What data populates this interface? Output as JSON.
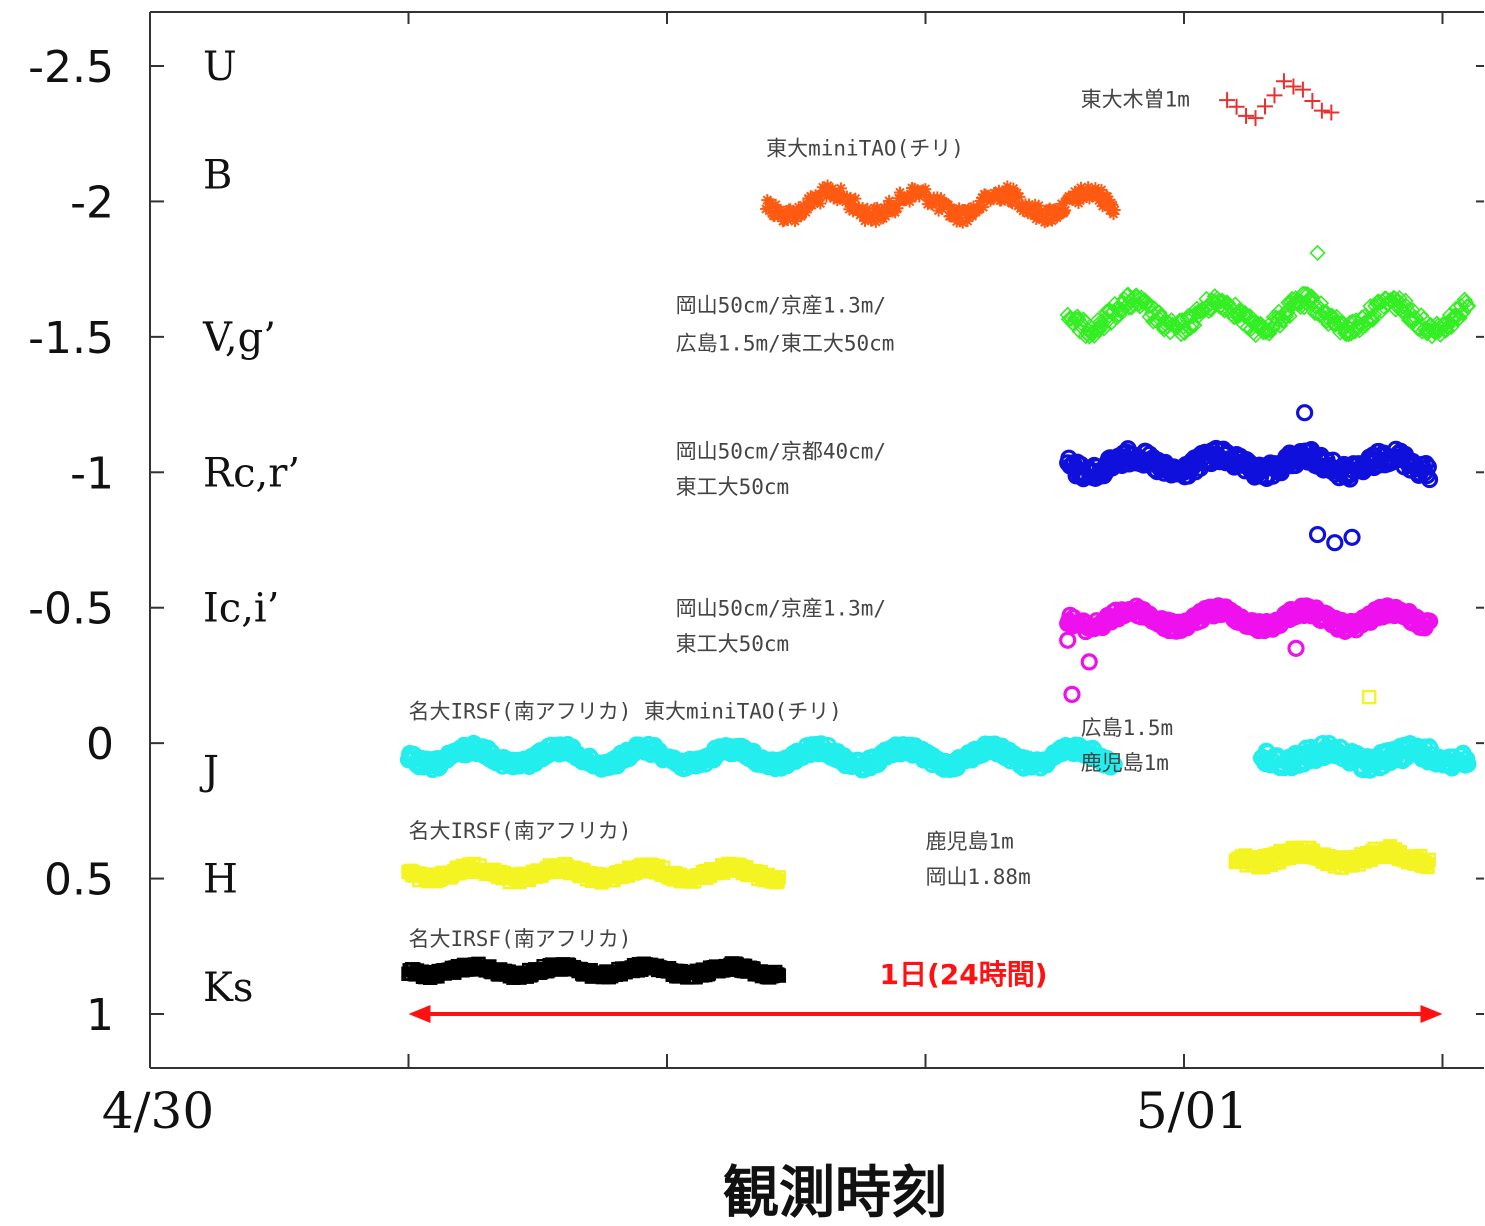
{
  "chart_data": {
    "type": "scatter",
    "title": "",
    "xlabel": "観測時刻",
    "ylabel": "",
    "y_inverted": true,
    "ylim": [
      1.2,
      -2.7
    ],
    "y_ticks": [
      -2.5,
      -2,
      -1.5,
      -1,
      -0.5,
      0,
      0.5,
      1
    ],
    "y_tick_labels": [
      "-2.5",
      "-2",
      "-1.5",
      "-1",
      "-0.5",
      "0",
      "0.5",
      "1"
    ],
    "x_unit": "hours since 4/30 00:00",
    "xlim": [
      0,
      31
    ],
    "x_minor_ticks": [
      6,
      12,
      18,
      24,
      30
    ],
    "x_date_labels": [
      {
        "x": 0,
        "text": "4/30"
      },
      {
        "x": 24,
        "text": "5/01"
      }
    ],
    "band_labels": [
      {
        "text": "U",
        "y": -2.5
      },
      {
        "text": "B",
        "y": -2.1
      },
      {
        "text": "V,g’",
        "y": -1.5
      },
      {
        "text": "Rc,r’",
        "y": -1.0
      },
      {
        "text": "Ic,i’",
        "y": -0.5
      },
      {
        "text": "J",
        "y": 0.1
      },
      {
        "text": "H",
        "y": 0.5
      },
      {
        "text": "Ks",
        "y": 0.9
      }
    ],
    "series": [
      {
        "band": "U",
        "observatory": "東大木曽1m",
        "color": "#e83030",
        "marker": "plus",
        "sparse": true,
        "x_start": 25.0,
        "x_end": 27.5,
        "y_center": -2.38,
        "amplitude": 0.06,
        "period": 2.0,
        "noise": 0.02
      },
      {
        "band": "B",
        "observatory": "東大miniTAO(チリ)",
        "color": "#ff5a12",
        "marker": "dense",
        "x_start": 14.3,
        "x_end": 22.4,
        "y_center": -1.99,
        "amplitude": 0.04,
        "period": 2.0,
        "noise": 0.03
      },
      {
        "band": "V,g’",
        "observatory": "岡山50cm/京産1.3m/広島1.5m/東工大50cm",
        "color": "#33ee22",
        "marker": "diamond",
        "x_start": 21.3,
        "x_end": 30.6,
        "y_center": -1.58,
        "amplitude": 0.05,
        "period": 2.0,
        "noise": 0.03
      },
      {
        "band": "Rc,r’",
        "observatory": "岡山50cm/京都40cm/東工大50cm",
        "color": "#1010dd",
        "marker": "circle",
        "x_start": 21.3,
        "x_end": 29.7,
        "y_center": -1.03,
        "amplitude": 0.03,
        "period": 2.0,
        "noise": 0.03
      },
      {
        "band": "Ic,i’",
        "observatory": "岡山50cm/京産1.3m/東工大50cm",
        "color": "#ee11ee",
        "marker": "circle",
        "x_start": 21.3,
        "x_end": 29.7,
        "y_center": -0.46,
        "amplitude": 0.03,
        "period": 2.0,
        "noise": 0.02
      },
      {
        "band": "J",
        "observatory": "名大IRSF(南アフリカ) 東大miniTAO(チリ)",
        "color": "#22eeee",
        "marker": "circle",
        "x_start": 6.0,
        "x_end": 22.4,
        "y_center": 0.05,
        "amplitude": 0.03,
        "period": 2.0,
        "noise": 0.02
      },
      {
        "band": "J",
        "observatory": "広島1.5m 鹿児島1m",
        "color": "#22eeee",
        "marker": "circle",
        "x_start": 25.8,
        "x_end": 30.6,
        "y_center": 0.05,
        "amplitude": 0.02,
        "period": 2.0,
        "noise": 0.03
      },
      {
        "band": "H",
        "observatory": "名大IRSF(南アフリカ)",
        "color": "#f4f422",
        "marker": "square",
        "x_start": 6.0,
        "x_end": 14.6,
        "y_center": 0.48,
        "amplitude": 0.02,
        "period": 2.0,
        "noise": 0.015
      },
      {
        "band": "H",
        "observatory": "鹿児島1m 岡山1.88m",
        "color": "#f4f422",
        "marker": "square",
        "x_start": 25.2,
        "x_end": 29.7,
        "y_center": 0.42,
        "amplitude": 0.02,
        "period": 2.0,
        "noise": 0.02
      },
      {
        "band": "Ks",
        "observatory": "名大IRSF(南アフリカ)",
        "color": "#000000",
        "marker": "square",
        "x_start": 6.0,
        "x_end": 14.6,
        "y_center": 0.84,
        "amplitude": 0.015,
        "period": 2.0,
        "noise": 0.012
      }
    ],
    "outliers": [
      {
        "band": "V,g’",
        "x": 27.1,
        "y": -1.81,
        "color": "#33ee22",
        "marker": "diamond"
      },
      {
        "band": "Rc,r’",
        "x": 27.1,
        "y": -0.77,
        "color": "#1010dd",
        "marker": "circle"
      },
      {
        "band": "Rc,r’",
        "x": 27.5,
        "y": -0.74,
        "color": "#1010dd",
        "marker": "circle"
      },
      {
        "band": "Rc,r’",
        "x": 27.9,
        "y": -0.76,
        "color": "#1010dd",
        "marker": "circle"
      },
      {
        "band": "Rc,r’",
        "x": 26.8,
        "y": -1.22,
        "color": "#1010dd",
        "marker": "circle"
      },
      {
        "band": "Ic,i’",
        "x": 21.3,
        "y": -0.38,
        "color": "#ee11ee",
        "marker": "circle"
      },
      {
        "band": "Ic,i’",
        "x": 21.8,
        "y": -0.3,
        "color": "#ee11ee",
        "marker": "circle"
      },
      {
        "band": "Ic,i’",
        "x": 21.4,
        "y": -0.18,
        "color": "#ee11ee",
        "marker": "circle"
      },
      {
        "band": "Ic,i’",
        "x": 26.6,
        "y": -0.35,
        "color": "#ee11ee",
        "marker": "circle"
      },
      {
        "band": "J",
        "x": 28.3,
        "y": -0.17,
        "color": "#f4f422",
        "marker": "square"
      }
    ],
    "annotations": [
      {
        "text": "東大木曽1m",
        "x": 21.6,
        "y": -2.38
      },
      {
        "text": "東大miniTAO(チリ)",
        "x": 14.3,
        "y": -2.2
      },
      {
        "text": "岡山50cm/京産1.3m/",
        "x": 12.2,
        "y": -1.62
      },
      {
        "text": "広島1.5m/東工大50cm",
        "x": 12.2,
        "y": -1.48
      },
      {
        "text": "岡山50cm/京都40cm/",
        "x": 12.2,
        "y": -1.08
      },
      {
        "text": "東工大50cm",
        "x": 12.2,
        "y": -0.95
      },
      {
        "text": "岡山50cm/京産1.3m/",
        "x": 12.2,
        "y": -0.5
      },
      {
        "text": "東工大50cm",
        "x": 12.2,
        "y": -0.37
      },
      {
        "text": "名大IRSF(南アフリカ) 東大miniTAO(チリ)",
        "x": 6.0,
        "y": -0.12
      },
      {
        "text": "広島1.5m",
        "x": 21.6,
        "y": -0.06
      },
      {
        "text": "鹿児島1m",
        "x": 21.6,
        "y": 0.07
      },
      {
        "text": "名大IRSF(南アフリカ)",
        "x": 6.0,
        "y": 0.32
      },
      {
        "text": "鹿児島1m",
        "x": 18.0,
        "y": 0.36
      },
      {
        "text": "岡山1.88m",
        "x": 18.0,
        "y": 0.49
      },
      {
        "text": "名大IRSF(南アフリカ)",
        "x": 6.0,
        "y": 0.72
      }
    ],
    "span_arrow": {
      "x_start": 6,
      "x_end": 30,
      "y": 1.0,
      "label": "1日(24時間)",
      "color": "#ff1111"
    }
  }
}
